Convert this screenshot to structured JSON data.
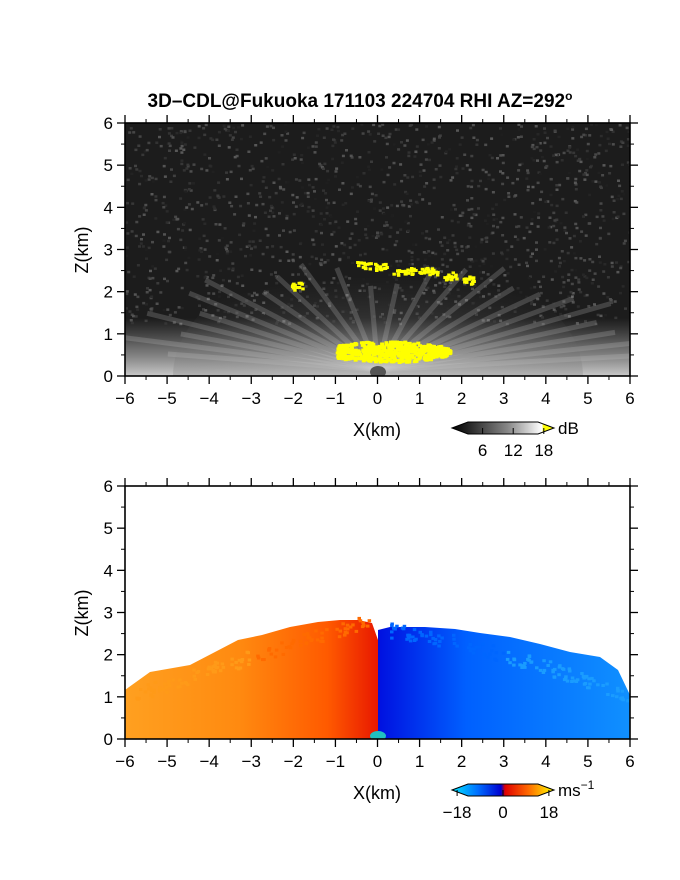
{
  "title": "3D–CDL@Fukuoka 171103 224704 RHI AZ=292",
  "title_degree_mark": "o",
  "chart_data": [
    {
      "type": "heatmap",
      "panel": "reflectivity",
      "xlabel": "X(km)",
      "ylabel": "Z(km)",
      "xlim": [
        -6,
        6
      ],
      "ylim": [
        0,
        6
      ],
      "x_ticks": [
        -6,
        -5,
        -4,
        -3,
        -2,
        -1,
        0,
        1,
        2,
        3,
        4,
        5,
        6
      ],
      "y_ticks": [
        0,
        1,
        2,
        3,
        4,
        5,
        6
      ],
      "grid": false,
      "colorbar": {
        "unit": "dB",
        "ticks": [
          6,
          12,
          18
        ],
        "range": [
          0,
          20
        ],
        "colors": [
          "#000000",
          "#ffffff",
          "#ffff00"
        ],
        "placement": "bottom-right"
      },
      "features": [
        {
          "name": "noise background",
          "z_range": [
            0,
            6
          ],
          "level": "low"
        },
        {
          "name": "near-ground bright layer",
          "x_range": [
            -6,
            6
          ],
          "z_range": [
            0,
            1.0
          ],
          "level": "high"
        },
        {
          "name": "saturated core",
          "x_range": [
            -1.0,
            1.7
          ],
          "z_range": [
            0.35,
            0.85
          ],
          "level": "max"
        },
        {
          "name": "saturated patches aloft",
          "x_range": [
            -2.0,
            2.4
          ],
          "z_range": [
            2.0,
            2.7
          ],
          "level": "max"
        }
      ]
    },
    {
      "type": "heatmap",
      "panel": "radial velocity",
      "xlabel": "X(km)",
      "ylabel": "Z(km)",
      "xlim": [
        -6,
        6
      ],
      "ylim": [
        0,
        6
      ],
      "x_ticks": [
        -6,
        -5,
        -4,
        -3,
        -2,
        -1,
        0,
        1,
        2,
        3,
        4,
        5,
        6
      ],
      "y_ticks": [
        0,
        1,
        2,
        3,
        4,
        5,
        6
      ],
      "grid": false,
      "colorbar": {
        "unit": "ms",
        "unit_exponent": "−1",
        "ticks": [
          "−18",
          "0",
          "18"
        ],
        "range": [
          -20,
          20
        ],
        "colors": [
          "#00e5ff",
          "#0055ff",
          "#0000cc",
          "#e00000",
          "#ff7000",
          "#ffff00"
        ],
        "placement": "bottom-right"
      },
      "features": [
        {
          "name": "negative velocity region",
          "x_range": [
            0,
            6
          ],
          "z_range": [
            0,
            2.6
          ],
          "velocity_ms": -14
        },
        {
          "name": "positive velocity region",
          "x_range": [
            -6,
            0
          ],
          "z_range": [
            0,
            2.9
          ],
          "velocity_ms": 12
        }
      ]
    }
  ]
}
